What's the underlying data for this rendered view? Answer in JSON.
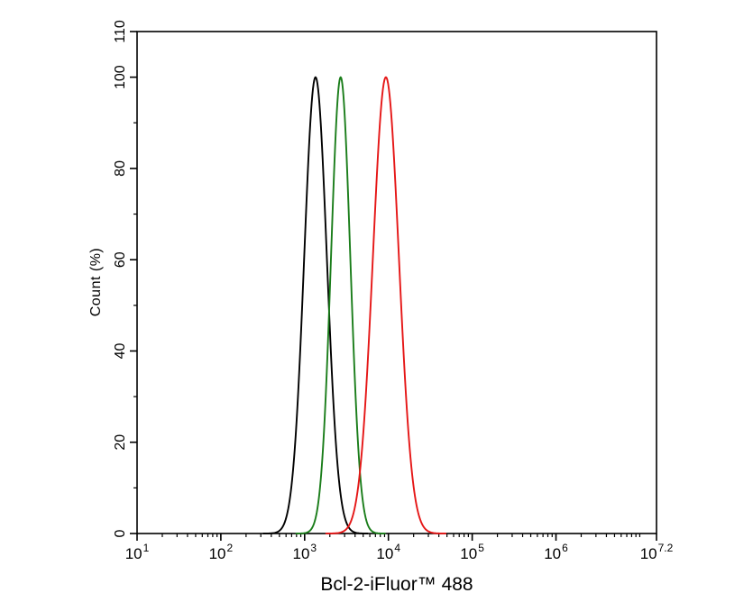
{
  "figure": {
    "background": "#ffffff",
    "axis_color": "#000000"
  },
  "chart_data": {
    "type": "line",
    "subtype": "flow-cytometry-histogram",
    "title": "",
    "xlabel": "Bcl-2-iFluor™ 488",
    "ylabel": "Count  (%)",
    "x_scale": "log10",
    "x_range_log10": [
      1,
      7.2
    ],
    "x_major_ticks": [
      {
        "exp": 1,
        "label_base": "10",
        "label_exp": "1"
      },
      {
        "exp": 2,
        "label_base": "10",
        "label_exp": "2"
      },
      {
        "exp": 3,
        "label_base": "10",
        "label_exp": "3"
      },
      {
        "exp": 4,
        "label_base": "10",
        "label_exp": "4"
      },
      {
        "exp": 5,
        "label_base": "10",
        "label_exp": "5"
      },
      {
        "exp": 6,
        "label_base": "10",
        "label_exp": "6"
      },
      {
        "exp": 7.2,
        "label_base": "10",
        "label_exp": "7.2"
      }
    ],
    "x_minor_ticks": "log sub-decades 2-9 between majors",
    "ylim": [
      0,
      110
    ],
    "y_major_ticks": [
      0,
      20,
      40,
      60,
      80,
      100,
      110
    ],
    "y_minor_ticks": [
      10,
      30,
      50,
      70,
      90
    ],
    "y_tick_label_rotation_deg": -90,
    "grid": false,
    "legend": "none",
    "series": [
      {
        "name": "black peak",
        "color": "#000000",
        "peak_x": 1350,
        "peak_log10": 3.13,
        "sigma_log10": 0.135,
        "peak_y_percent": 100
      },
      {
        "name": "green peak",
        "color": "#1a7d1a",
        "peak_x": 2700,
        "peak_log10": 3.43,
        "sigma_log10": 0.115,
        "peak_y_percent": 100
      },
      {
        "name": "red peak",
        "color": "#e51616",
        "peak_x": 9300,
        "peak_log10": 3.97,
        "sigma_log10": 0.155,
        "peak_y_percent": 100
      }
    ]
  }
}
